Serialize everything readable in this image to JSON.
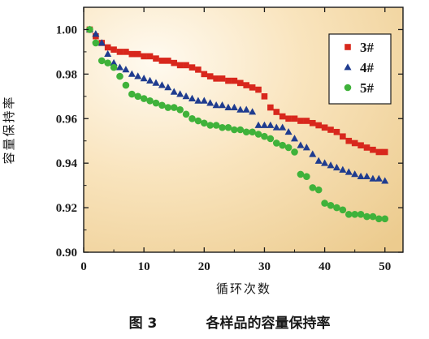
{
  "chart_data": {
    "type": "scatter",
    "xlabel": "循环次数",
    "ylabel": "容量保持率",
    "xlim": [
      0,
      53
    ],
    "ylim": [
      0.9,
      1.01
    ],
    "xticks": [
      "0",
      "10",
      "20",
      "30",
      "40",
      "50"
    ],
    "yticks": [
      "0.90",
      "0.92",
      "0.94",
      "0.96",
      "0.98",
      "1.00"
    ],
    "grid": false,
    "legend_position": "top-right",
    "caption_label": "图 3",
    "caption_text": "各样品的容量保持率",
    "x": [
      1,
      2,
      3,
      4,
      5,
      6,
      7,
      8,
      9,
      10,
      11,
      12,
      13,
      14,
      15,
      16,
      17,
      18,
      19,
      20,
      21,
      22,
      23,
      24,
      25,
      26,
      27,
      28,
      29,
      30,
      31,
      32,
      33,
      34,
      35,
      36,
      37,
      38,
      39,
      40,
      41,
      42,
      43,
      44,
      45,
      46,
      47,
      48,
      49,
      50
    ],
    "series": [
      {
        "name": "3#",
        "marker": "square",
        "color": "#d8271c",
        "values": [
          1.0,
          0.997,
          0.994,
          0.992,
          0.991,
          0.99,
          0.99,
          0.989,
          0.989,
          0.988,
          0.988,
          0.987,
          0.986,
          0.986,
          0.985,
          0.984,
          0.984,
          0.983,
          0.982,
          0.98,
          0.979,
          0.978,
          0.978,
          0.977,
          0.977,
          0.976,
          0.975,
          0.974,
          0.973,
          0.97,
          0.965,
          0.963,
          0.961,
          0.96,
          0.96,
          0.959,
          0.959,
          0.958,
          0.957,
          0.956,
          0.955,
          0.954,
          0.952,
          0.95,
          0.949,
          0.948,
          0.947,
          0.946,
          0.945,
          0.945
        ]
      },
      {
        "name": "4#",
        "marker": "triangle",
        "color": "#1f3c8f",
        "values": [
          1.0,
          0.998,
          0.994,
          0.989,
          0.985,
          0.983,
          0.982,
          0.98,
          0.979,
          0.978,
          0.977,
          0.976,
          0.975,
          0.974,
          0.972,
          0.971,
          0.97,
          0.969,
          0.968,
          0.968,
          0.967,
          0.966,
          0.966,
          0.965,
          0.965,
          0.964,
          0.964,
          0.963,
          0.957,
          0.957,
          0.957,
          0.956,
          0.956,
          0.954,
          0.951,
          0.948,
          0.947,
          0.944,
          0.941,
          0.94,
          0.939,
          0.938,
          0.937,
          0.936,
          0.935,
          0.934,
          0.934,
          0.933,
          0.933,
          0.932
        ]
      },
      {
        "name": "5#",
        "marker": "circle",
        "color": "#3fb23a",
        "values": [
          1.0,
          0.994,
          0.986,
          0.985,
          0.983,
          0.979,
          0.975,
          0.971,
          0.97,
          0.969,
          0.968,
          0.967,
          0.966,
          0.965,
          0.965,
          0.964,
          0.962,
          0.96,
          0.959,
          0.958,
          0.957,
          0.957,
          0.956,
          0.956,
          0.955,
          0.955,
          0.954,
          0.954,
          0.953,
          0.952,
          0.951,
          0.949,
          0.948,
          0.947,
          0.945,
          0.935,
          0.934,
          0.929,
          0.928,
          0.922,
          0.921,
          0.92,
          0.919,
          0.917,
          0.917,
          0.917,
          0.916,
          0.916,
          0.915,
          0.915
        ]
      }
    ]
  }
}
